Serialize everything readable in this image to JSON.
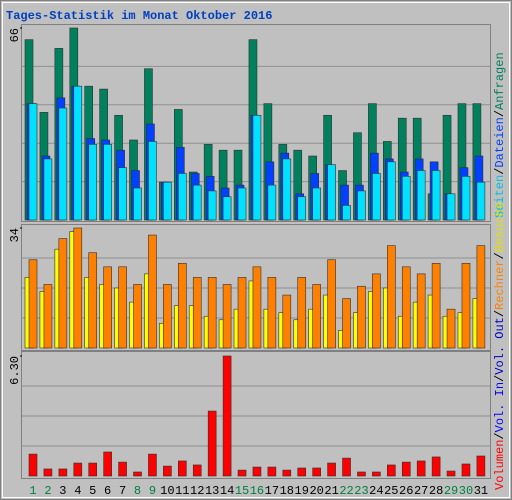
{
  "chart_data": [
    {
      "type": "bar",
      "title": "Tages-Statistik im Monat Oktober 2016",
      "separator": "/",
      "ylim": [
        0,
        66
      ],
      "yticks": [
        66
      ],
      "series": [
        {
          "name": "Anfragen",
          "color": "#00805c",
          "values": [
            62,
            37,
            59,
            66,
            46,
            45,
            36,
            27.5,
            52,
            13,
            38,
            16.5,
            26,
            24,
            24,
            62,
            40,
            26,
            24,
            22,
            36,
            17,
            30,
            40,
            27,
            35,
            35,
            9,
            36,
            40,
            40
          ]
        },
        {
          "name": "Dateien",
          "color": "#0040ff",
          "values": [
            40,
            22,
            42,
            46,
            28,
            27.5,
            24,
            17,
            33,
            13,
            25,
            16,
            15,
            11,
            12,
            36,
            20,
            23,
            9,
            16,
            19,
            12,
            12,
            23,
            21,
            16.5,
            21,
            20,
            9,
            18,
            22
          ]
        },
        {
          "name": "Seiten",
          "color": "#00e0ff",
          "values": [
            40,
            21,
            38.5,
            46,
            26,
            26,
            18,
            11,
            27,
            13,
            16,
            12,
            10,
            8,
            11,
            36,
            12,
            21,
            8,
            11,
            19,
            5,
            10,
            16,
            20,
            15,
            17,
            17,
            9,
            15,
            13
          ]
        }
      ]
    },
    {
      "type": "bar",
      "separator": "/",
      "ylim": [
        0,
        34
      ],
      "yticks": [
        34
      ],
      "series": [
        {
          "name": "Besuche",
          "color": "#ffff00",
          "values": [
            20,
            16,
            28,
            33,
            20,
            18,
            17,
            13,
            21,
            7,
            12,
            12,
            9,
            8,
            11,
            19,
            11,
            10,
            8,
            11,
            15,
            5,
            10,
            16,
            17,
            9,
            13,
            15,
            9,
            10,
            14
          ]
        },
        {
          "name": "Rechner",
          "color": "#ff8000",
          "values": [
            25,
            18,
            31,
            34,
            27,
            23,
            23,
            18,
            32,
            18,
            24,
            20,
            20,
            18,
            20,
            23,
            20,
            15,
            20,
            18,
            25,
            14,
            17.5,
            21,
            29,
            23,
            21,
            24,
            11,
            24,
            29
          ]
        }
      ]
    },
    {
      "type": "bar",
      "separator": "/",
      "ylim": [
        0,
        6.3
      ],
      "yticks": [
        {
          "value": 6.3,
          "label": "6.30"
        }
      ],
      "categories": [
        "1",
        "2",
        "3",
        "4",
        "5",
        "6",
        "7",
        "8",
        "9",
        "10",
        "11",
        "12",
        "13",
        "14",
        "15",
        "16",
        "17",
        "18",
        "19",
        "20",
        "21",
        "22",
        "23",
        "24",
        "25",
        "26",
        "27",
        "28",
        "29",
        "30",
        "31"
      ],
      "label_colors": [
        "#008040",
        "#008040",
        "#000000",
        "#000000",
        "#000000",
        "#000000",
        "#000000",
        "#008040",
        "#008040",
        "#000000",
        "#000000",
        "#000000",
        "#000000",
        "#000000",
        "#008040",
        "#008040",
        "#000000",
        "#000000",
        "#000000",
        "#000000",
        "#000000",
        "#008040",
        "#008040",
        "#000000",
        "#000000",
        "#000000",
        "#000000",
        "#000000",
        "#008040",
        "#008040",
        "#000000"
      ],
      "series": [
        {
          "name": "Volumen",
          "color": "#ff0000",
          "values": [
            1.15,
            0.37,
            0.37,
            0.68,
            0.68,
            1.26,
            0.73,
            0.21,
            1.15,
            0.52,
            0.79,
            0.58,
            3.41,
            6.3,
            0.31,
            0.47,
            0.47,
            0.31,
            0.42,
            0.42,
            0.68,
            0.94,
            0.21,
            0.21,
            0.58,
            0.73,
            0.79,
            1.0,
            0.26,
            0.63,
            1.05
          ]
        },
        {
          "name": "Vol. In",
          "color": "#0000ff",
          "values": [
            0,
            0,
            0,
            0,
            0,
            0,
            0,
            0,
            0,
            0,
            0,
            0,
            0,
            0,
            0,
            0,
            0,
            0,
            0,
            0,
            0,
            0,
            0,
            0,
            0,
            0,
            0,
            0,
            0,
            0,
            0
          ]
        },
        {
          "name": "Vol. Out",
          "color": "#0000c0",
          "values": [
            0,
            0,
            0,
            0,
            0,
            0,
            0,
            0,
            0,
            0,
            0,
            0,
            0,
            0,
            0,
            0,
            0,
            0,
            0,
            0,
            0,
            0,
            0,
            0,
            0,
            0,
            0,
            0,
            0,
            0,
            0
          ]
        }
      ]
    }
  ]
}
